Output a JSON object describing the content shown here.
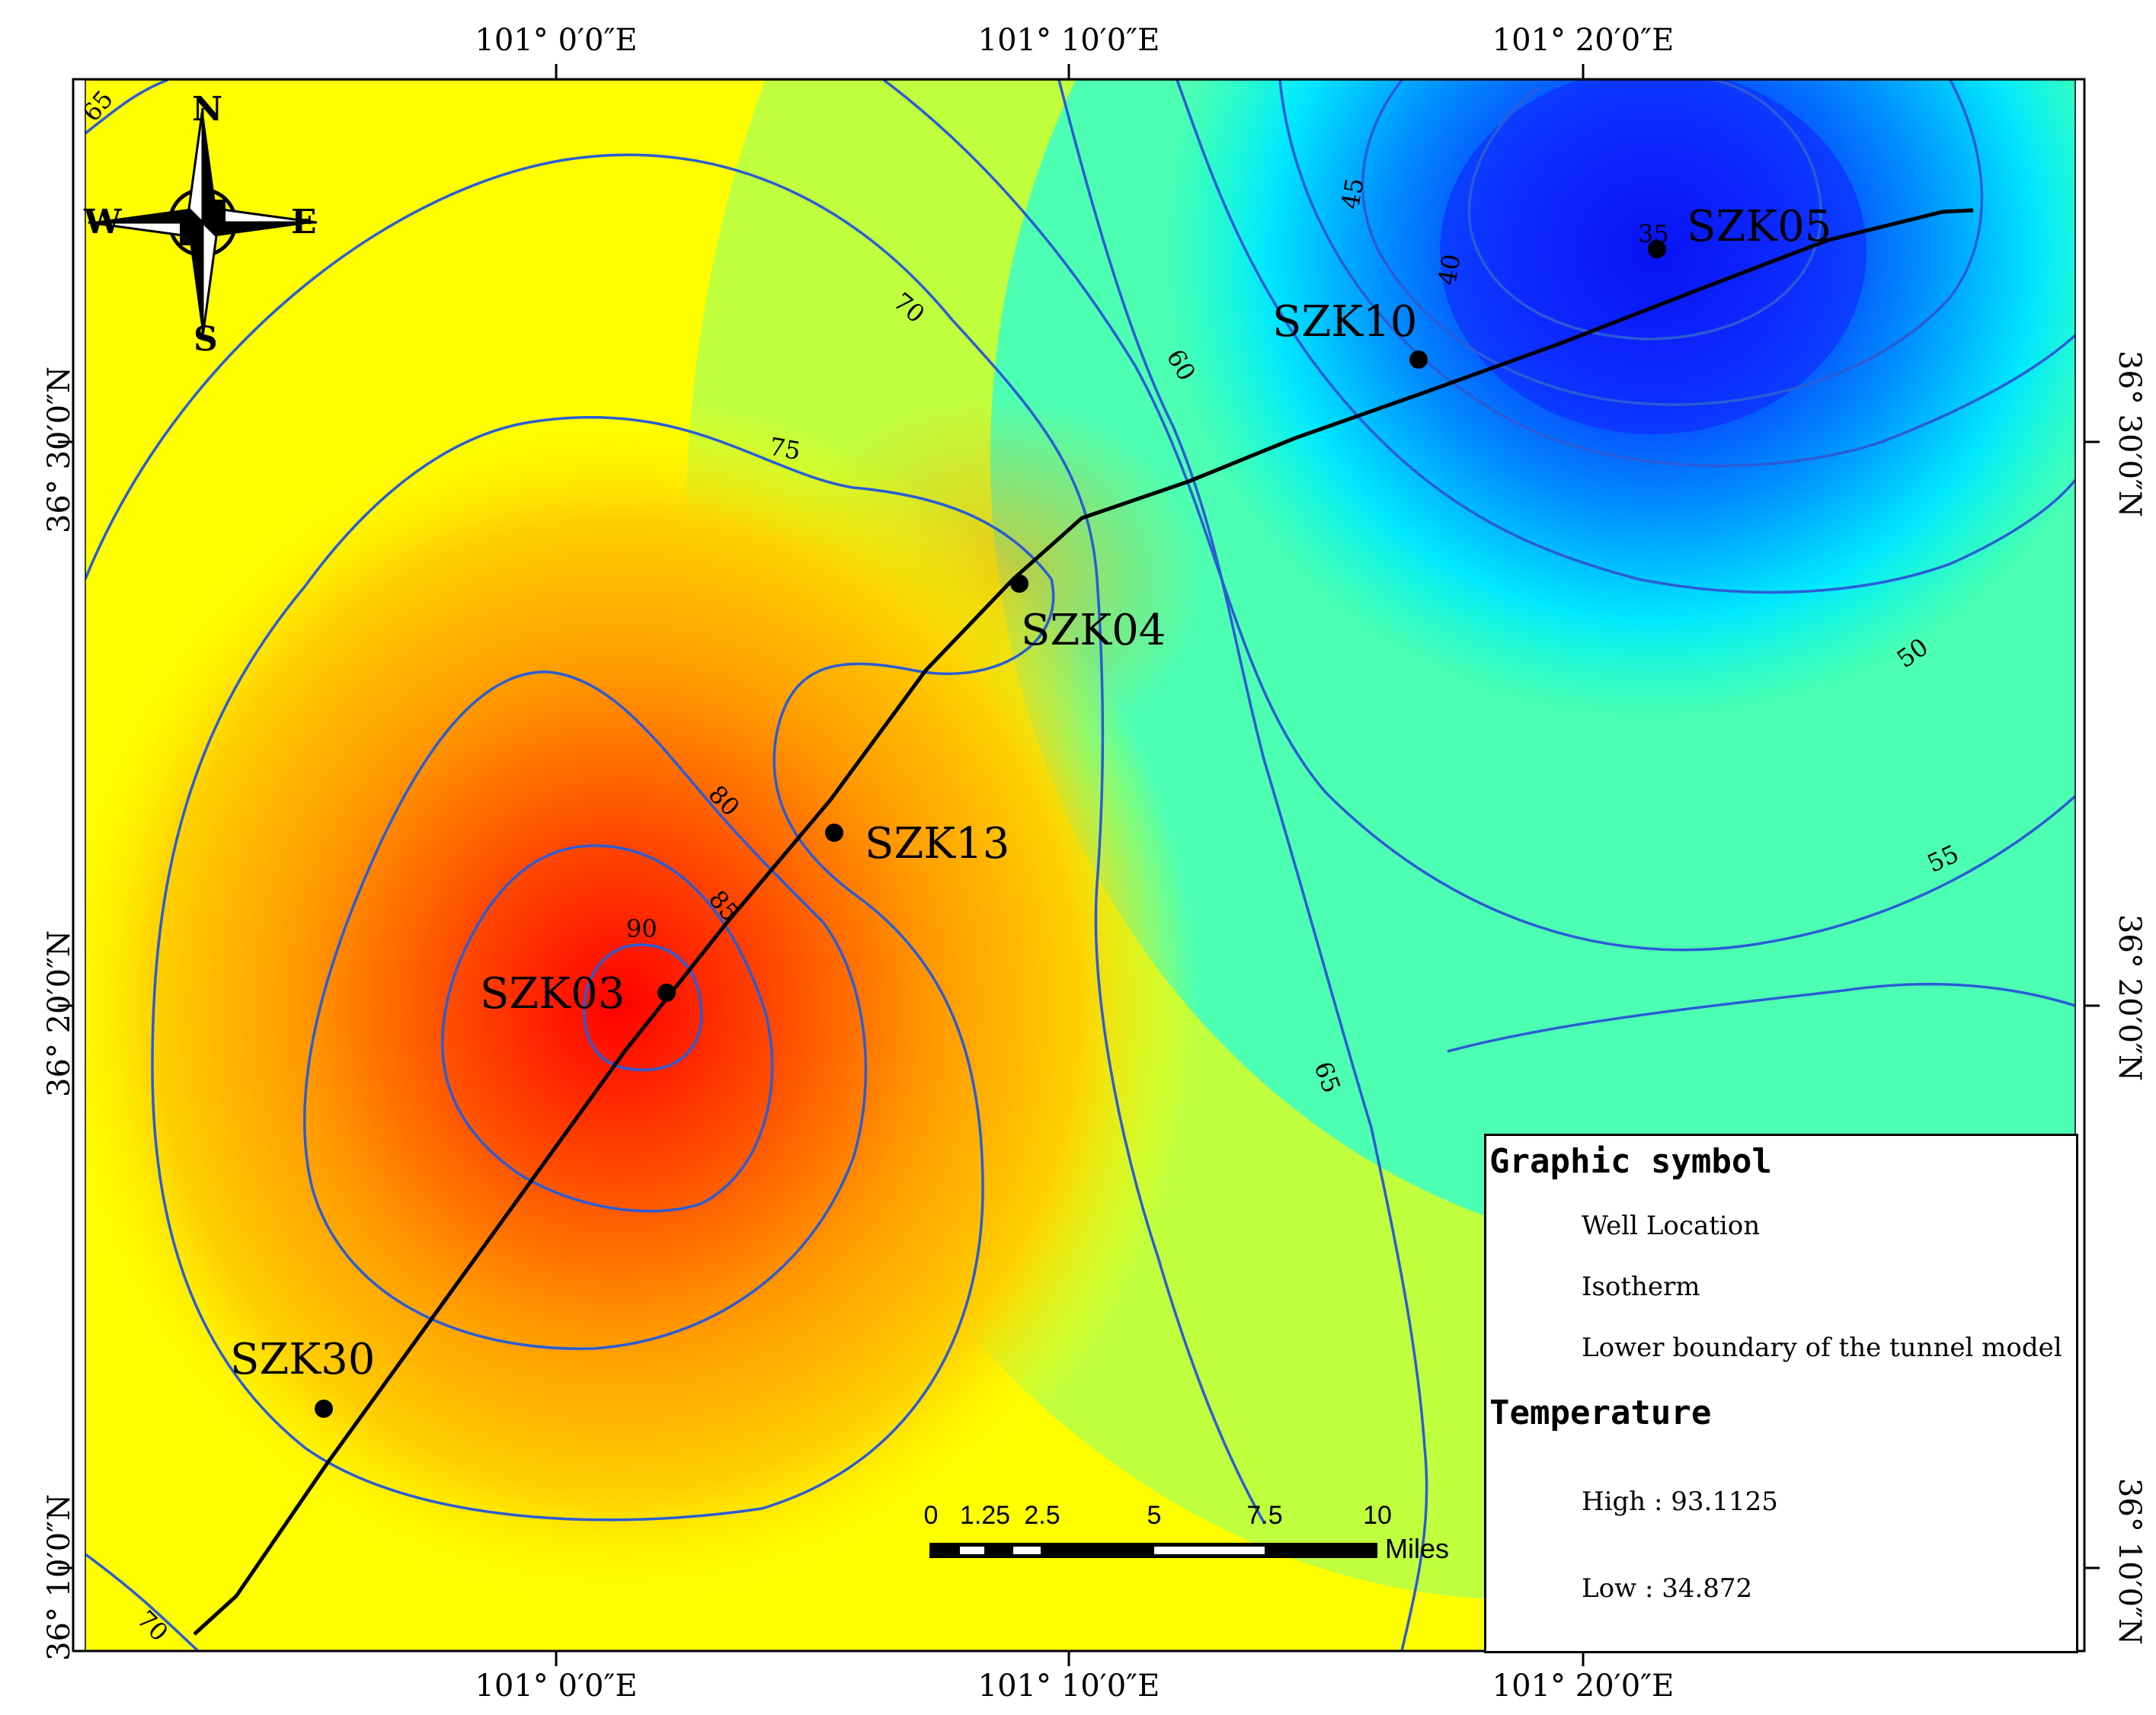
{
  "coordinates": {
    "top": [
      "101° 0′0″E",
      "101° 10′0″E",
      "101° 20′0″E"
    ],
    "bottom": [
      "101° 0′0″E",
      "101° 10′0″E",
      "101° 20′0″E"
    ],
    "left": [
      "36° 30′0″N",
      "36° 20′0″N",
      "36° 10′0″N"
    ],
    "right": [
      "36° 30′0″N",
      "36° 20′0″N",
      "36° 10′0″N"
    ]
  },
  "compass": {
    "north": "N",
    "south": "S",
    "east": "E",
    "west": "W"
  },
  "wells": [
    {
      "id": "SZK05"
    },
    {
      "id": "SZK10"
    },
    {
      "id": "SZK04"
    },
    {
      "id": "SZK13"
    },
    {
      "id": "SZK03"
    },
    {
      "id": "SZK30"
    }
  ],
  "contour_labels": [
    "65",
    "70",
    "75",
    "60",
    "45",
    "40",
    "35",
    "50",
    "55",
    "80",
    "85",
    "90",
    "65",
    "70"
  ],
  "scale_bar": {
    "ticks": [
      "0",
      "1.25",
      "2.5",
      "5",
      "7.5",
      "10"
    ],
    "unit": "Miles"
  },
  "legend": {
    "title": "Graphic symbol",
    "items": [
      {
        "label": "Well Location"
      },
      {
        "label": "Isotherm"
      },
      {
        "label": "Lower boundary of the tunnel model"
      }
    ],
    "temperature_title": "Temperature",
    "high_label": "High : 93.1125",
    "low_label": "Low : 34.872",
    "ramp_colors": [
      "#ff0000",
      "#ff8c00",
      "#ffff00",
      "#7fff7f",
      "#00ffff",
      "#0000ff"
    ]
  },
  "colors": {
    "isotherm": "#2a5cd6",
    "boundary": "#000000"
  }
}
